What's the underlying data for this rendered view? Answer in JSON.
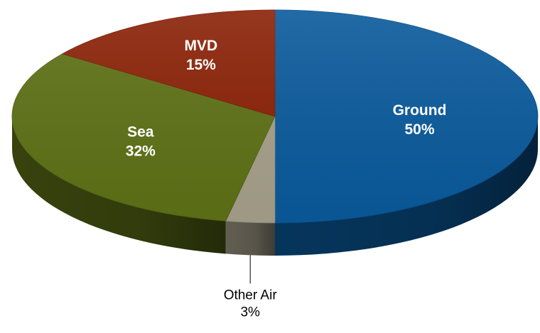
{
  "chart_data": {
    "type": "pie",
    "three_d": true,
    "legend": "none",
    "slices": [
      {
        "label": "Ground",
        "value": 50,
        "value_label": "50%",
        "color": "#0a5a9c",
        "label_position": "inside"
      },
      {
        "label": "Other Air",
        "value": 3,
        "value_label": "3%",
        "color": "#a6a08b",
        "label_position": "outside-callout"
      },
      {
        "label": "Sea",
        "value": 32,
        "value_label": "32%",
        "color": "#5e7116",
        "label_position": "inside"
      },
      {
        "label": "MVD",
        "value": 15,
        "value_label": "15%",
        "color": "#8a2106",
        "label_position": "inside"
      }
    ]
  }
}
